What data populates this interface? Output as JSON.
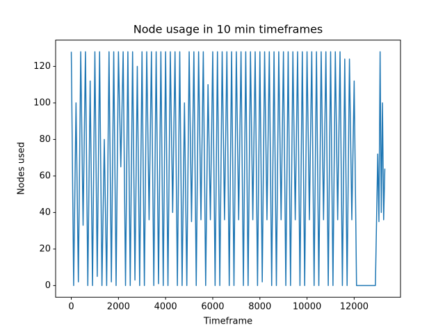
{
  "chart_data": {
    "type": "line",
    "title": "Node usage in 10 min timeframes",
    "x_label": "Timeframe",
    "y_label": "Nodes used",
    "color": "#1f77b4",
    "xlim": [
      -665,
      13965
    ],
    "ylim": [
      -6.4,
      134.4
    ],
    "xticks": [
      0,
      2000,
      4000,
      6000,
      8000,
      10000,
      12000
    ],
    "yticks": [
      0,
      20,
      40,
      60,
      80,
      100,
      120
    ],
    "grid": false,
    "x": [
      0,
      100,
      200,
      300,
      400,
      500,
      600,
      700,
      800,
      900,
      1000,
      1100,
      1200,
      1300,
      1400,
      1500,
      1600,
      1700,
      1800,
      1900,
      2000,
      2100,
      2200,
      2300,
      2400,
      2500,
      2600,
      2700,
      2800,
      2900,
      3000,
      3100,
      3200,
      3300,
      3400,
      3500,
      3600,
      3700,
      3800,
      3900,
      4000,
      4100,
      4200,
      4300,
      4400,
      4500,
      4600,
      4700,
      4800,
      4900,
      5000,
      5100,
      5200,
      5300,
      5400,
      5500,
      5600,
      5700,
      5800,
      5900,
      6000,
      6100,
      6200,
      6300,
      6400,
      6500,
      6600,
      6700,
      6800,
      6900,
      7000,
      7100,
      7200,
      7300,
      7400,
      7500,
      7600,
      7700,
      7800,
      7900,
      8000,
      8100,
      8200,
      8300,
      8400,
      8500,
      8600,
      8700,
      8800,
      8900,
      9000,
      9100,
      9200,
      9300,
      9400,
      9500,
      9600,
      9700,
      9800,
      9900,
      10000,
      10100,
      10200,
      10300,
      10400,
      10500,
      10600,
      10700,
      10800,
      10900,
      11000,
      11100,
      11200,
      11300,
      11400,
      11500,
      11600,
      11700,
      11800,
      11900,
      12000,
      12100,
      12900,
      13000,
      13050,
      13100,
      13150,
      13200,
      13250,
      13300
    ],
    "values": [
      128,
      0,
      100,
      2,
      128,
      33,
      128,
      0,
      112,
      0,
      128,
      5,
      128,
      0,
      80,
      0,
      128,
      2,
      128,
      0,
      128,
      65,
      128,
      0,
      128,
      0,
      128,
      3,
      120,
      0,
      128,
      0,
      128,
      36,
      128,
      0,
      128,
      1,
      128,
      0,
      128,
      0,
      128,
      40,
      128,
      0,
      128,
      0,
      100,
      0,
      128,
      35,
      128,
      0,
      128,
      36,
      128,
      0,
      110,
      36,
      128,
      0,
      128,
      0,
      128,
      36,
      128,
      0,
      128,
      0,
      128,
      36,
      128,
      0,
      128,
      0,
      128,
      36,
      128,
      0,
      128,
      2,
      128,
      36,
      128,
      0,
      128,
      0,
      128,
      36,
      128,
      0,
      128,
      0,
      128,
      36,
      128,
      0,
      128,
      0,
      128,
      36,
      128,
      0,
      128,
      0,
      128,
      36,
      128,
      0,
      128,
      0,
      128,
      36,
      128,
      0,
      124,
      0,
      124,
      36,
      112,
      0,
      0,
      72,
      35,
      128,
      40,
      100,
      36,
      64
    ]
  }
}
